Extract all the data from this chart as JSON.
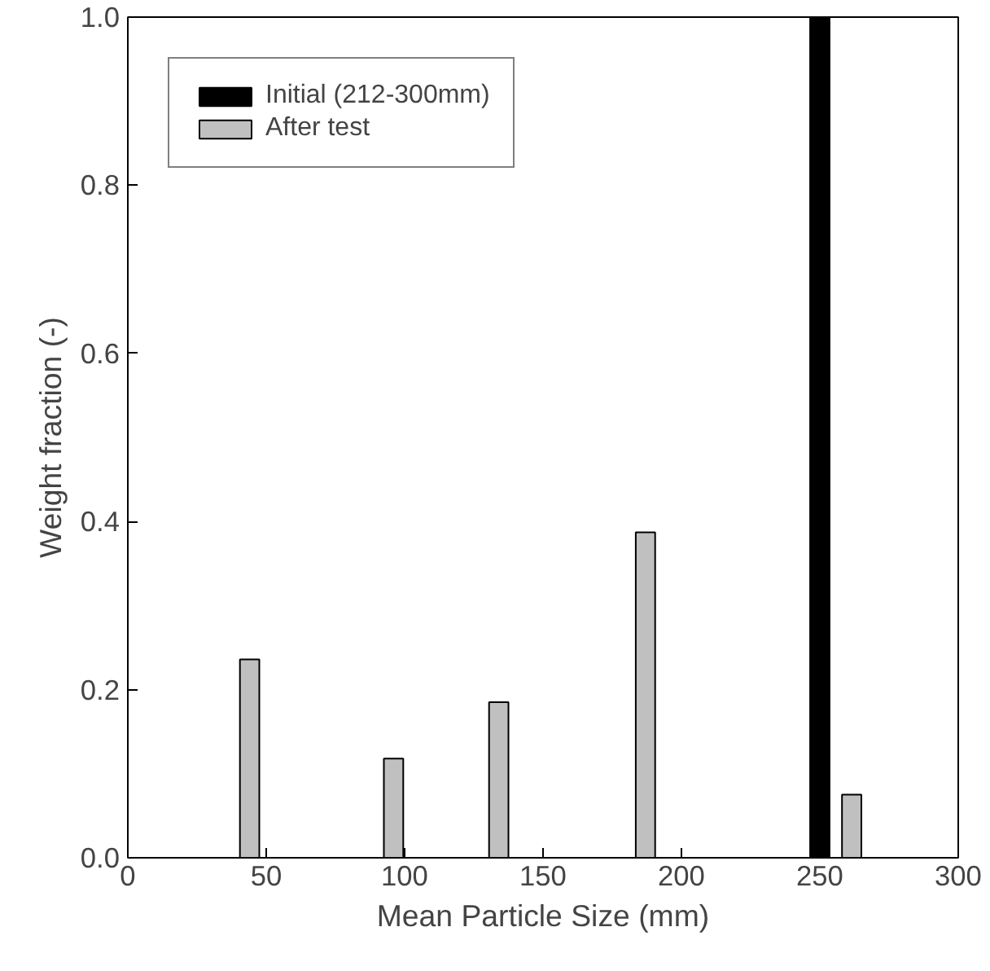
{
  "chart_data": {
    "type": "bar",
    "xlabel": "Mean Particle Size (mm)",
    "ylabel": "Weight fraction (-)",
    "series": [
      {
        "name": "Initial (212-300mm)",
        "color": "#000000",
        "x": [
          250
        ],
        "values": [
          1.0
        ]
      },
      {
        "name": "After test",
        "color": "#c0c0c0",
        "x": [
          44,
          96,
          134,
          187,
          261.5
        ],
        "values": [
          0.236,
          0.118,
          0.185,
          0.387,
          0.075
        ]
      }
    ],
    "xlim": [
      0,
      300
    ],
    "xticks": [
      0,
      50,
      100,
      150,
      200,
      250,
      300
    ],
    "ylim": [
      0,
      1.0
    ],
    "yticks": [
      {
        "value": 0,
        "label": "0.0"
      },
      {
        "value": 0.2,
        "label": "0.2"
      },
      {
        "value": 0.4,
        "label": "0.4"
      },
      {
        "value": 0.6,
        "label": "0.6"
      },
      {
        "value": 0.8,
        "label": "0.8"
      },
      {
        "value": 1.0,
        "label": "1.0"
      }
    ],
    "grid": false,
    "legend": "top left"
  }
}
